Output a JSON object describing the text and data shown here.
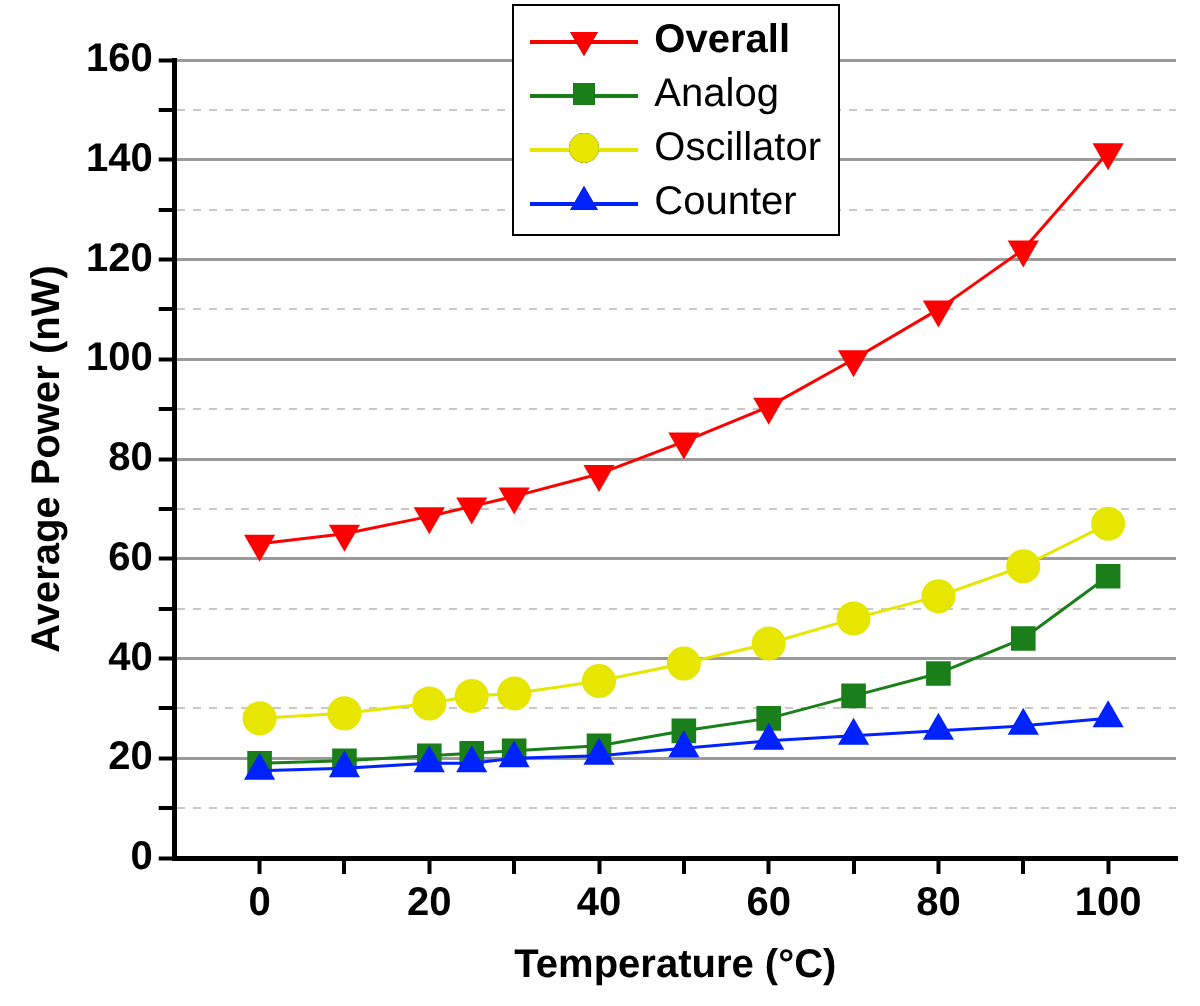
{
  "chart_data": {
    "type": "line",
    "xlabel": "Temperature (°C)",
    "ylabel": "Average Power (nW)",
    "x": [
      0,
      10,
      20,
      25,
      30,
      40,
      50,
      60,
      70,
      80,
      90,
      100
    ],
    "series": [
      {
        "name": "Overall",
        "color": "#ff0000",
        "marker": "triangle_down",
        "values": [
          63,
          65,
          68.5,
          70.5,
          72.5,
          77,
          83.5,
          90.5,
          100,
          110,
          122,
          141.5
        ]
      },
      {
        "name": "Analog",
        "color": "#1a7f1a",
        "marker": "square",
        "values": [
          19,
          19.5,
          20.5,
          21,
          21.5,
          22.5,
          25.5,
          28,
          32.5,
          37,
          44,
          56.5
        ]
      },
      {
        "name": "Oscillator",
        "color": "#e6e600",
        "marker": "circle",
        "values": [
          28,
          29,
          31,
          32.5,
          33,
          35.5,
          39,
          43,
          48,
          52.5,
          58.5,
          67
        ]
      },
      {
        "name": "Counter",
        "color": "#0022ff",
        "marker": "triangle",
        "values": [
          17.5,
          18,
          19,
          19,
          20,
          20.5,
          22,
          23.5,
          24.5,
          25.5,
          26.5,
          28
        ]
      }
    ],
    "xlim": [
      -10,
      108
    ],
    "xticks": [
      0,
      {
        "value": 10,
        "label": null
      },
      20,
      {
        "value": 30,
        "label": null
      },
      40,
      {
        "value": 50,
        "label": null
      },
      60,
      {
        "value": 70,
        "label": null
      },
      80,
      {
        "value": 90,
        "label": null
      },
      100
    ],
    "ylim": [
      0,
      160
    ],
    "yticks": [
      0,
      {
        "value": 10,
        "label": null
      },
      20,
      {
        "value": 30,
        "label": null
      },
      40,
      {
        "value": 50,
        "label": null
      },
      60,
      {
        "value": 70,
        "label": null
      },
      80,
      {
        "value": 90,
        "label": null
      },
      100,
      {
        "value": 110,
        "label": null
      },
      120,
      {
        "value": 130,
        "label": null
      },
      140,
      {
        "value": 150,
        "label": null
      },
      160
    ],
    "grid": "y",
    "legend": "top",
    "line_style": "solid"
  }
}
